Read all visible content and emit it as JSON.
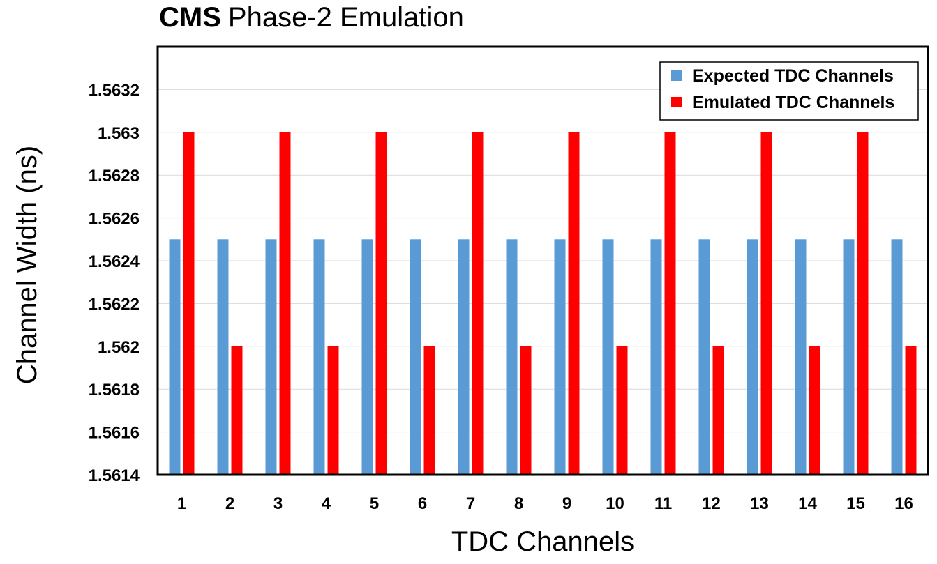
{
  "chart_data": {
    "type": "bar",
    "title_bold": "CMS",
    "title_rest": "Phase-2 Emulation",
    "xlabel": "TDC Channels",
    "ylabel": "Channel Width (ns)",
    "categories": [
      "1",
      "2",
      "3",
      "4",
      "5",
      "6",
      "7",
      "8",
      "9",
      "10",
      "11",
      "12",
      "13",
      "14",
      "15",
      "16"
    ],
    "ylim": [
      1.5614,
      1.5634
    ],
    "yticks": [
      "1.5614",
      "1.5616",
      "1.5618",
      "1.562",
      "1.5622",
      "1.5624",
      "1.5626",
      "1.5628",
      "1.563",
      "1.5632"
    ],
    "grid": true,
    "legend_position": "top-right",
    "series": [
      {
        "name": "Expected TDC Channels",
        "color": "#5b9bd5",
        "values": [
          1.5625,
          1.5625,
          1.5625,
          1.5625,
          1.5625,
          1.5625,
          1.5625,
          1.5625,
          1.5625,
          1.5625,
          1.5625,
          1.5625,
          1.5625,
          1.5625,
          1.5625,
          1.5625
        ]
      },
      {
        "name": "Emulated TDC Channels",
        "color": "#ff0000",
        "values": [
          1.563,
          1.562,
          1.563,
          1.562,
          1.563,
          1.562,
          1.563,
          1.562,
          1.563,
          1.562,
          1.563,
          1.562,
          1.563,
          1.562,
          1.563,
          1.562
        ]
      }
    ]
  }
}
